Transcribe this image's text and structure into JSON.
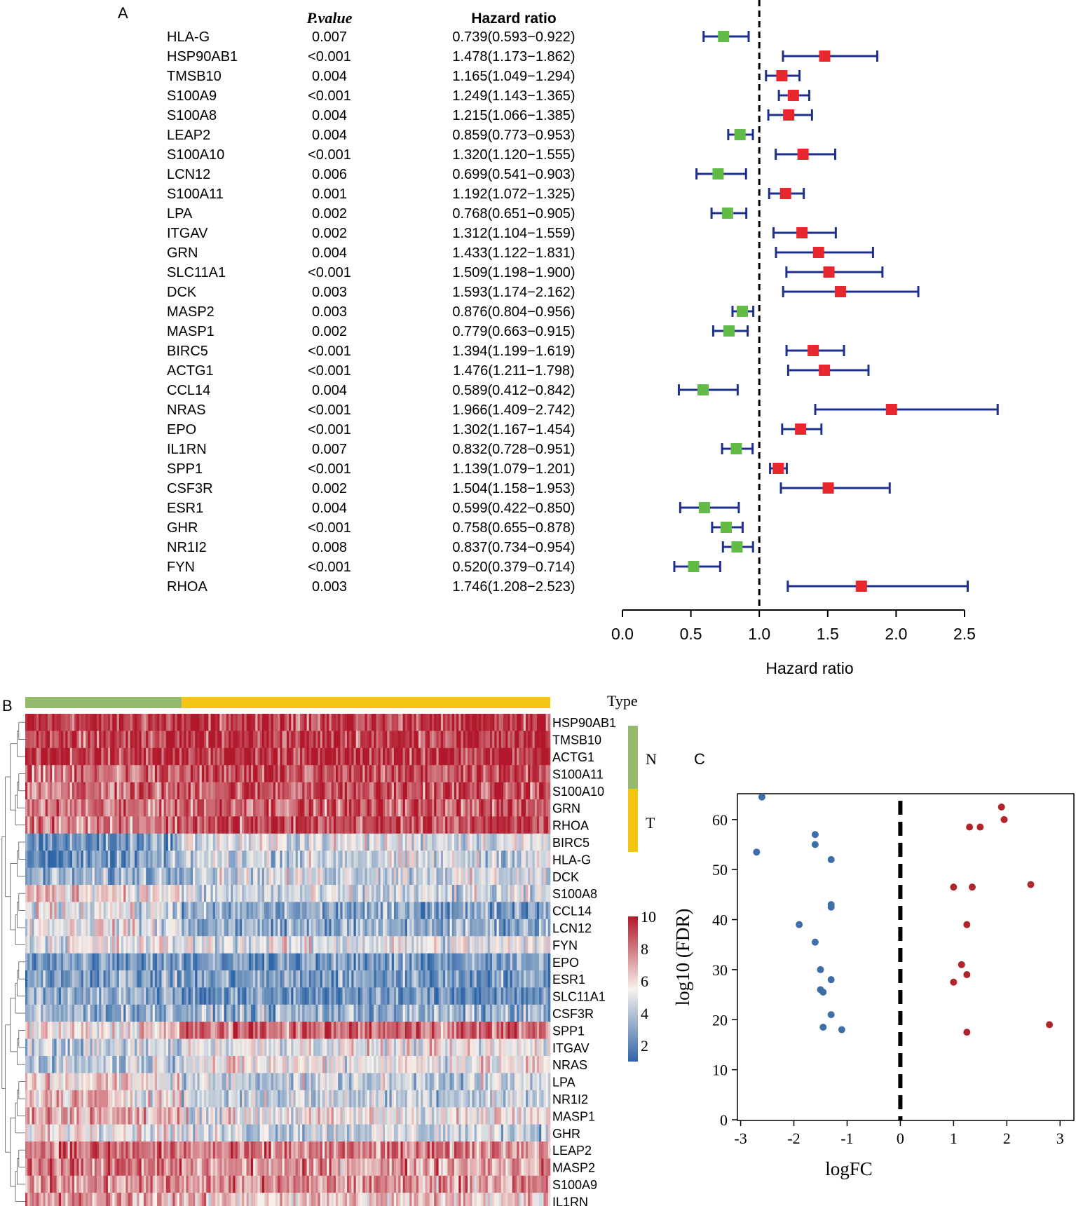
{
  "panels": {
    "a": {
      "label": "A"
    },
    "b": {
      "label": "B"
    },
    "c": {
      "label": "C"
    }
  },
  "colors": {
    "ci_line": "#1f2f8c",
    "hr_high": "#e8262d",
    "hr_low": "#62bb46",
    "group_N": "#95ba6d",
    "group_T": "#f2c511",
    "heat_high": "#b2182b",
    "heat_mid": "#f7f2ec",
    "heat_low": "#2f66a8",
    "volcano_down": "#3d6ea8",
    "volcano_up": "#b0252a"
  },
  "chart_data": [
    {
      "type": "forest",
      "panel": "A",
      "headers": {
        "pvalue": "P.value",
        "hr": "Hazard ratio"
      },
      "genes": [
        "HLA-G",
        "HSP90AB1",
        "TMSB10",
        "S100A9",
        "S100A8",
        "LEAP2",
        "S100A10",
        "LCN12",
        "S100A11",
        "LPA",
        "ITGAV",
        "GRN",
        "SLC11A1",
        "DCK",
        "MASP2",
        "MASP1",
        "BIRC5",
        "ACTG1",
        "CCL14",
        "NRAS",
        "EPO",
        "IL1RN",
        "SPP1",
        "CSF3R",
        "ESR1",
        "GHR",
        "NR1I2",
        "FYN",
        "RHOA"
      ],
      "pvalues": [
        "0.007",
        "<0.001",
        "0.004",
        "<0.001",
        "0.004",
        "0.004",
        "<0.001",
        "0.006",
        "0.001",
        "0.002",
        "0.002",
        "0.004",
        "<0.001",
        "0.003",
        "0.003",
        "0.002",
        "<0.001",
        "<0.001",
        "0.004",
        "<0.001",
        "<0.001",
        "0.007",
        "<0.001",
        "0.002",
        "0.004",
        "<0.001",
        "0.008",
        "<0.001",
        "0.003"
      ],
      "hr_text": [
        "0.739(0.593−0.922)",
        "1.478(1.173−1.862)",
        "1.165(1.049−1.294)",
        "1.249(1.143−1.365)",
        "1.215(1.066−1.385)",
        "0.859(0.773−0.953)",
        "1.320(1.120−1.555)",
        "0.699(0.541−0.903)",
        "1.192(1.072−1.325)",
        "0.768(0.651−0.905)",
        "1.312(1.104−1.559)",
        "1.433(1.122−1.831)",
        "1.509(1.198−1.900)",
        "1.593(1.174−2.162)",
        "0.876(0.804−0.956)",
        "0.779(0.663−0.915)",
        "1.394(1.199−1.619)",
        "1.476(1.211−1.798)",
        "0.589(0.412−0.842)",
        "1.966(1.409−2.742)",
        "1.302(1.167−1.454)",
        "0.832(0.728−0.951)",
        "1.139(1.079−1.201)",
        "1.504(1.158−1.953)",
        "0.599(0.422−0.850)",
        "0.758(0.655−0.878)",
        "0.837(0.734−0.954)",
        "0.520(0.379−0.714)",
        "1.746(1.208−2.523)"
      ],
      "hr": [
        0.739,
        1.478,
        1.165,
        1.249,
        1.215,
        0.859,
        1.32,
        0.699,
        1.192,
        0.768,
        1.312,
        1.433,
        1.509,
        1.593,
        0.876,
        0.779,
        1.394,
        1.476,
        0.589,
        1.966,
        1.302,
        0.832,
        1.139,
        1.504,
        0.599,
        0.758,
        0.837,
        0.52,
        1.746
      ],
      "lower": [
        0.593,
        1.173,
        1.049,
        1.143,
        1.066,
        0.773,
        1.12,
        0.541,
        1.072,
        0.651,
        1.104,
        1.122,
        1.198,
        1.174,
        0.804,
        0.663,
        1.199,
        1.211,
        0.412,
        1.409,
        1.167,
        0.728,
        1.079,
        1.158,
        0.422,
        0.655,
        0.734,
        0.379,
        1.208
      ],
      "upper": [
        0.922,
        1.862,
        1.294,
        1.365,
        1.385,
        0.953,
        1.555,
        0.903,
        1.325,
        0.905,
        1.559,
        1.831,
        1.9,
        2.162,
        0.956,
        0.915,
        1.619,
        1.798,
        0.842,
        2.742,
        1.454,
        0.951,
        1.201,
        1.953,
        0.85,
        0.878,
        0.954,
        0.714,
        2.523
      ],
      "xlim": [
        0.0,
        2.5
      ],
      "xticks": [
        "0.0",
        "0.5",
        "1.0",
        "1.5",
        "2.0",
        "2.5"
      ],
      "reference_line": 1.0,
      "xlabel": "Hazard ratio"
    },
    {
      "type": "heatmap",
      "panel": "B",
      "annotation_title": "Type",
      "groups": [
        {
          "name": "N",
          "samples": 70
        },
        {
          "name": "T",
          "samples": 165
        }
      ],
      "rows": [
        "HSP90AB1",
        "TMSB10",
        "ACTG1",
        "S100A11",
        "S100A10",
        "GRN",
        "RHOA",
        "BIRC5",
        "HLA-G",
        "DCK",
        "S100A8",
        "CCL14",
        "LCN12",
        "FYN",
        "EPO",
        "ESR1",
        "SLC11A1",
        "CSF3R",
        "SPP1",
        "ITGAV",
        "NRAS",
        "LPA",
        "NR1I2",
        "MASP1",
        "GHR",
        "LEAP2",
        "MASP2",
        "S100A9",
        "IL1RN"
      ],
      "row_mean_N": [
        9.3,
        9.5,
        9.6,
        8.0,
        8.1,
        7.9,
        8.0,
        2.4,
        2.1,
        3.3,
        6.4,
        5.4,
        5.6,
        5.3,
        3.0,
        3.2,
        3.5,
        3.4,
        5.6,
        4.2,
        4.3,
        6.2,
        6.6,
        7.1,
        6.1,
        8.3,
        8.0,
        7.5,
        7.4
      ],
      "row_mean_T": [
        9.3,
        9.4,
        9.6,
        8.7,
        8.9,
        8.7,
        9.0,
        5.0,
        4.6,
        4.8,
        4.4,
        3.0,
        3.3,
        5.1,
        2.6,
        2.8,
        2.4,
        3.4,
        8.3,
        5.3,
        5.6,
        4.4,
        4.5,
        5.5,
        4.6,
        7.7,
        7.3,
        7.5,
        6.4
      ],
      "legend": {
        "ticks": [
          "10",
          "8",
          "6",
          "4",
          "2"
        ],
        "range": [
          1,
          10
        ]
      }
    },
    {
      "type": "scatter",
      "panel": "C",
      "xlabel": "logFC",
      "ylabel": "log10 (FDR)",
      "xlim": [
        -3.0,
        3.0
      ],
      "ylim": [
        0,
        65
      ],
      "xticks": [
        "-3",
        "-2",
        "-1",
        "0",
        "1",
        "2",
        "3"
      ],
      "yticks": [
        "0",
        "10",
        "20",
        "30",
        "40",
        "50",
        "60"
      ],
      "reference_line": 0,
      "down": {
        "x": [
          -2.6,
          -2.7,
          -1.6,
          -1.6,
          -1.3,
          -1.3,
          -1.3,
          -1.9,
          -1.6,
          -1.5,
          -1.3,
          -1.5,
          -1.45,
          -1.3,
          -1.45,
          -1.1
        ],
        "y": [
          64.5,
          53.5,
          57,
          55,
          52,
          43,
          42.5,
          39,
          35.5,
          30,
          28,
          26,
          25.5,
          21,
          18.5,
          18
        ]
      },
      "up": {
        "x": [
          1.9,
          1.95,
          1.3,
          1.5,
          1.0,
          1.35,
          2.45,
          1.25,
          1.15,
          1.25,
          1.0,
          2.8,
          1.25
        ],
        "y": [
          62.5,
          60,
          58.5,
          58.5,
          46.5,
          46.5,
          47,
          39,
          31,
          29,
          27.5,
          19,
          17.5
        ]
      }
    }
  ]
}
